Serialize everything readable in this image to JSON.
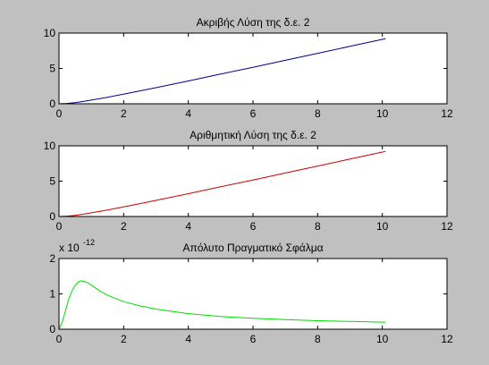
{
  "window": {
    "background": "#c0c0c0"
  },
  "chart_data": [
    {
      "type": "line",
      "title": "Ακριβής Λύση  της δ.ε. 2",
      "xlim": [
        0,
        12
      ],
      "ylim": [
        0,
        10
      ],
      "xticks": [
        "0",
        "2",
        "4",
        "6",
        "8",
        "10",
        "12"
      ],
      "yticks": [
        "0",
        "5",
        "10"
      ],
      "exponent_label": "",
      "grid": false,
      "series": [
        {
          "color": "#00008b",
          "x": [
            0,
            0.25,
            0.5,
            0.75,
            1,
            1.5,
            2,
            3,
            4,
            5,
            6,
            7,
            8,
            9,
            10,
            10.1
          ],
          "y": [
            0,
            0.05,
            0.17,
            0.33,
            0.52,
            0.93,
            1.37,
            2.28,
            3.23,
            4.2,
            5.17,
            6.15,
            7.14,
            8.13,
            9.12,
            9.22
          ]
        }
      ]
    },
    {
      "type": "line",
      "title": "Αριθμητική Λύση της δ.ε. 2",
      "xlim": [
        0,
        12
      ],
      "ylim": [
        0,
        10
      ],
      "xticks": [
        "0",
        "2",
        "4",
        "6",
        "8",
        "10",
        "12"
      ],
      "yticks": [
        "0",
        "5",
        "10"
      ],
      "exponent_label": "",
      "grid": false,
      "series": [
        {
          "color": "#cc0000",
          "x": [
            0,
            0.25,
            0.5,
            0.75,
            1,
            1.5,
            2,
            3,
            4,
            5,
            6,
            7,
            8,
            9,
            10,
            10.1
          ],
          "y": [
            0,
            0.05,
            0.17,
            0.33,
            0.52,
            0.93,
            1.37,
            2.28,
            3.23,
            4.2,
            5.17,
            6.15,
            7.14,
            8.13,
            9.12,
            9.22
          ]
        }
      ]
    },
    {
      "type": "line",
      "title": "Απόλυτο Πραγματικό Σφάλμα",
      "xlim": [
        0,
        12
      ],
      "ylim": [
        0,
        2
      ],
      "xticks": [
        "0",
        "2",
        "4",
        "6",
        "8",
        "10",
        "12"
      ],
      "yticks": [
        "0",
        "1",
        "2"
      ],
      "exponent_label": "x 10",
      "exponent_power": "-12",
      "grid": false,
      "series": [
        {
          "color": "#00dd00",
          "x": [
            0,
            0.1,
            0.2,
            0.3,
            0.4,
            0.5,
            0.6,
            0.7,
            0.8,
            0.9,
            1.0,
            1.2,
            1.5,
            2.0,
            2.5,
            3.0,
            4.0,
            5.0,
            6.0,
            7.0,
            8.0,
            9.0,
            10.0,
            10.1
          ],
          "y": [
            0,
            0.2,
            0.52,
            0.85,
            1.08,
            1.24,
            1.34,
            1.37,
            1.35,
            1.31,
            1.25,
            1.12,
            0.96,
            0.78,
            0.66,
            0.57,
            0.44,
            0.36,
            0.31,
            0.27,
            0.24,
            0.22,
            0.2,
            0.2
          ]
        }
      ]
    }
  ]
}
